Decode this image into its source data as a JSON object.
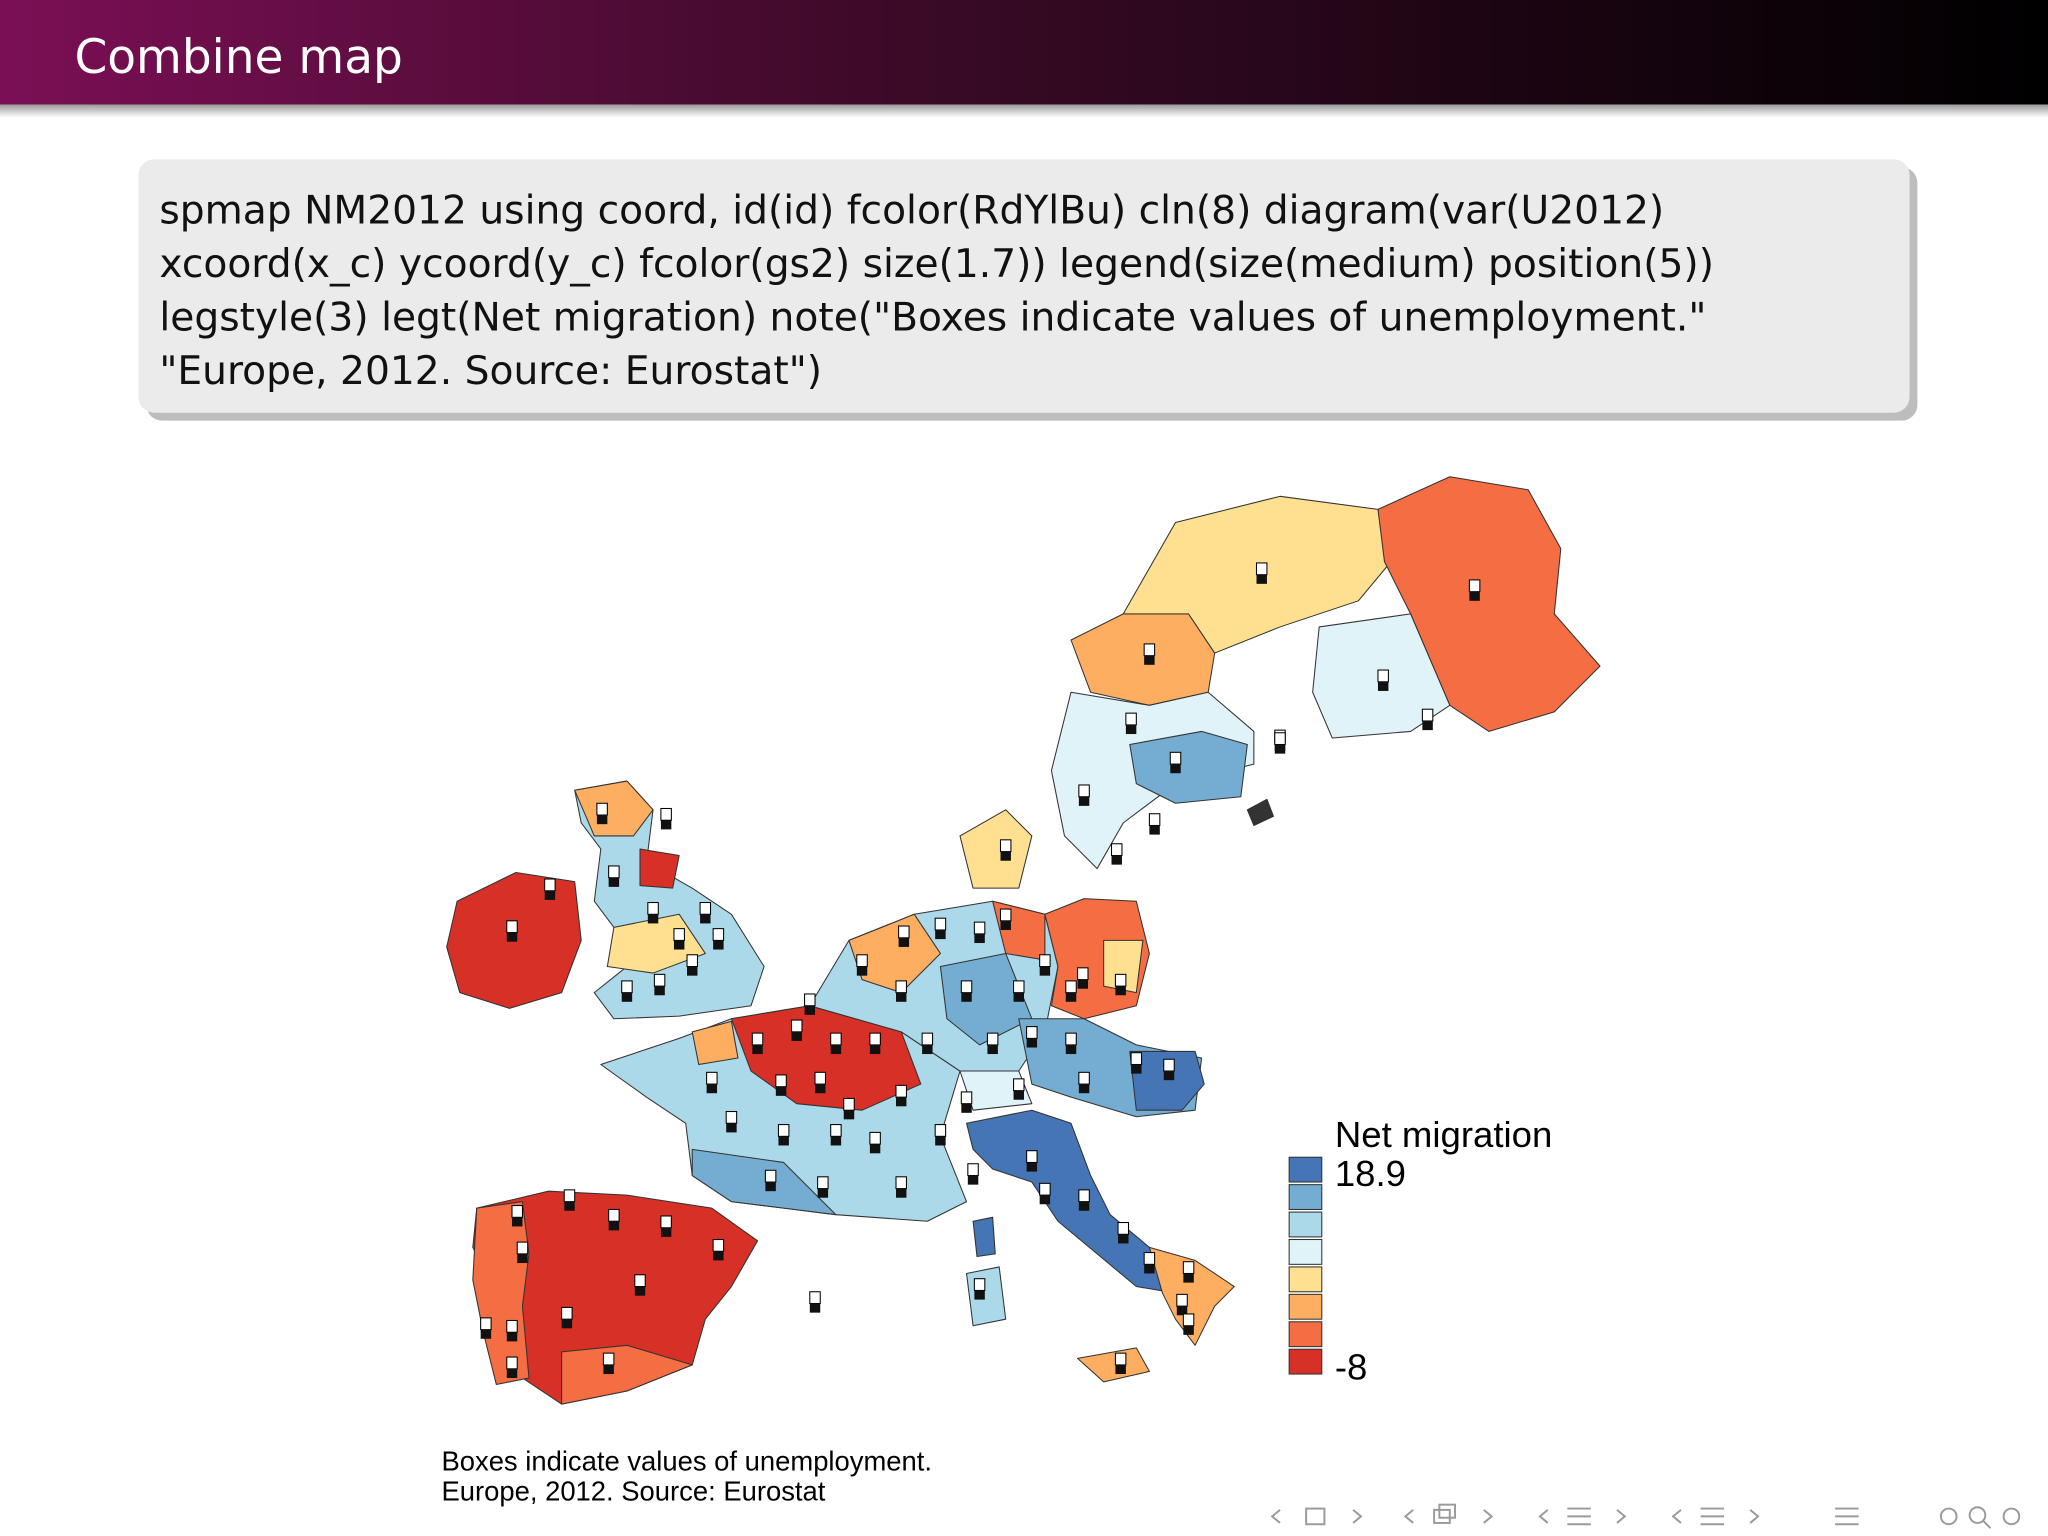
{
  "header": {
    "title": "Combine map"
  },
  "code_block": {
    "lines": [
      "spmap NM2012 using coord, id(id) fcolor(RdYlBu) cln(8) diagram(var(U2012)",
      "xcoord(x_c) ycoord(y_c) fcolor(gs2) size(1.7)) legend(size(medium) position(5))",
      "legstyle(3) legt(Net migration) note(\"Boxes indicate values of unemployment.\"",
      "\"Europe, 2012. Source: Eurostat\")"
    ]
  },
  "map": {
    "legend": {
      "title": "Net migration",
      "labels": {
        "top": "18.9",
        "bottom": "-8"
      }
    },
    "note": {
      "lines": [
        "Boxes indicate values of unemployment.",
        "Europe, 2012. Source: Eurostat"
      ]
    }
  }
}
